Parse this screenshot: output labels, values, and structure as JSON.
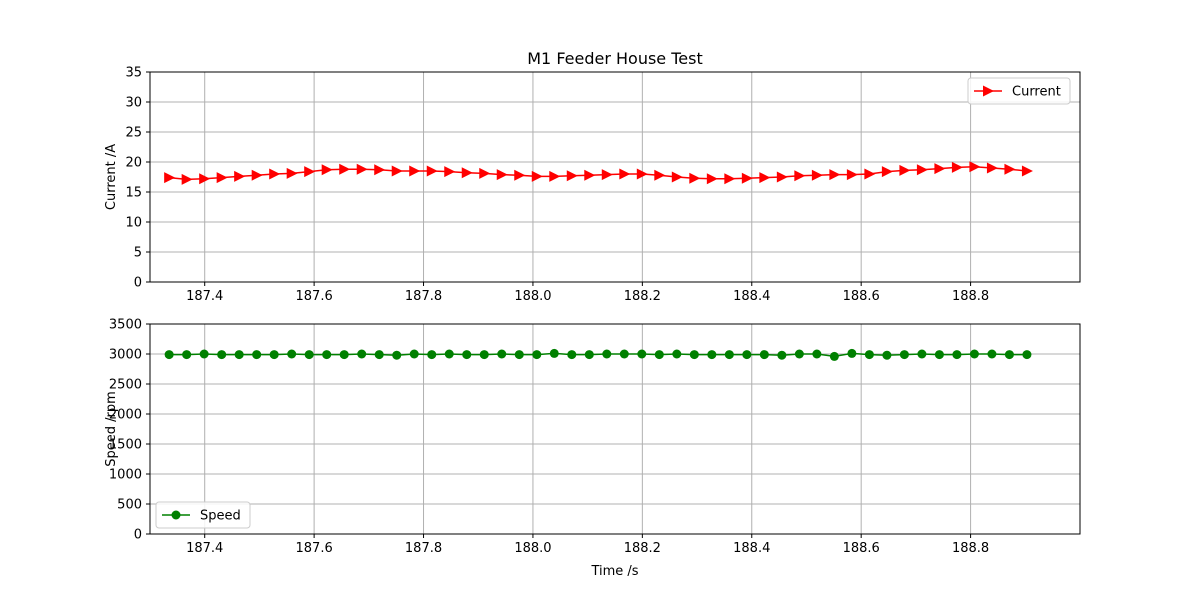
{
  "chart_data": [
    {
      "type": "line",
      "title": "M1 Feeder House Test",
      "xlabel": "",
      "ylabel": "Current /A",
      "xlim": [
        187.3,
        189.0
      ],
      "ylim": [
        0,
        35
      ],
      "xticks": [
        "187.4",
        "187.6",
        "187.8",
        "188.0",
        "188.2",
        "188.4",
        "188.6",
        "188.8"
      ],
      "yticks": [
        "0",
        "5",
        "10",
        "15",
        "20",
        "25",
        "30",
        "35"
      ],
      "grid": true,
      "legend_position": "top-right",
      "series": [
        {
          "name": "Current",
          "color": "#ff0000",
          "marker": "triangle-right",
          "x": [
            187.335,
            187.367,
            187.399,
            187.431,
            187.463,
            187.495,
            187.527,
            187.559,
            187.591,
            187.623,
            187.655,
            187.687,
            187.719,
            187.751,
            187.783,
            187.815,
            187.847,
            187.879,
            187.911,
            187.943,
            187.975,
            188.007,
            188.039,
            188.071,
            188.103,
            188.135,
            188.167,
            188.199,
            188.231,
            188.263,
            188.295,
            188.327,
            188.359,
            188.391,
            188.423,
            188.455,
            188.487,
            188.519,
            188.551,
            188.583,
            188.615,
            188.647,
            188.679,
            188.711,
            188.743,
            188.775,
            188.807,
            188.839,
            188.871,
            188.903
          ],
          "y": [
            17.4,
            17.1,
            17.2,
            17.4,
            17.6,
            17.8,
            18.0,
            18.1,
            18.4,
            18.7,
            18.8,
            18.8,
            18.7,
            18.5,
            18.5,
            18.5,
            18.4,
            18.2,
            18.1,
            17.9,
            17.8,
            17.6,
            17.6,
            17.7,
            17.8,
            17.9,
            18.0,
            18.0,
            17.8,
            17.5,
            17.3,
            17.2,
            17.2,
            17.3,
            17.4,
            17.5,
            17.7,
            17.8,
            17.9,
            17.9,
            18.0,
            18.4,
            18.6,
            18.7,
            18.9,
            19.1,
            19.2,
            19.0,
            18.8,
            18.5
          ]
        }
      ]
    },
    {
      "type": "line",
      "title": "",
      "xlabel": "Time /s",
      "ylabel": "Speed /rpm",
      "xlim": [
        187.3,
        189.0
      ],
      "ylim": [
        0,
        3500
      ],
      "xticks": [
        "187.4",
        "187.6",
        "187.8",
        "188.0",
        "188.2",
        "188.4",
        "188.6",
        "188.8"
      ],
      "yticks": [
        "0",
        "500",
        "1000",
        "1500",
        "2000",
        "2500",
        "3000",
        "3500"
      ],
      "grid": true,
      "legend_position": "bottom-left",
      "series": [
        {
          "name": "Speed",
          "color": "#008000",
          "marker": "circle",
          "x": [
            187.335,
            187.367,
            187.399,
            187.431,
            187.463,
            187.495,
            187.527,
            187.559,
            187.591,
            187.623,
            187.655,
            187.687,
            187.719,
            187.751,
            187.783,
            187.815,
            187.847,
            187.879,
            187.911,
            187.943,
            187.975,
            188.007,
            188.039,
            188.071,
            188.103,
            188.135,
            188.167,
            188.199,
            188.231,
            188.263,
            188.295,
            188.327,
            188.359,
            188.391,
            188.423,
            188.455,
            188.487,
            188.519,
            188.551,
            188.583,
            188.615,
            188.647,
            188.679,
            188.711,
            188.743,
            188.775,
            188.807,
            188.839,
            188.871,
            188.903
          ],
          "y": [
            2990,
            2990,
            3000,
            2990,
            2990,
            2990,
            2990,
            3000,
            2990,
            2990,
            2990,
            3000,
            2990,
            2980,
            3000,
            2990,
            3000,
            2990,
            2990,
            3000,
            2990,
            2990,
            3010,
            2990,
            2990,
            3000,
            3000,
            3000,
            2990,
            3000,
            2990,
            2990,
            2990,
            2990,
            2990,
            2980,
            3000,
            3000,
            2960,
            3010,
            2990,
            2980,
            2990,
            3000,
            2990,
            2990,
            3000,
            3000,
            2990,
            2990
          ]
        }
      ]
    }
  ]
}
